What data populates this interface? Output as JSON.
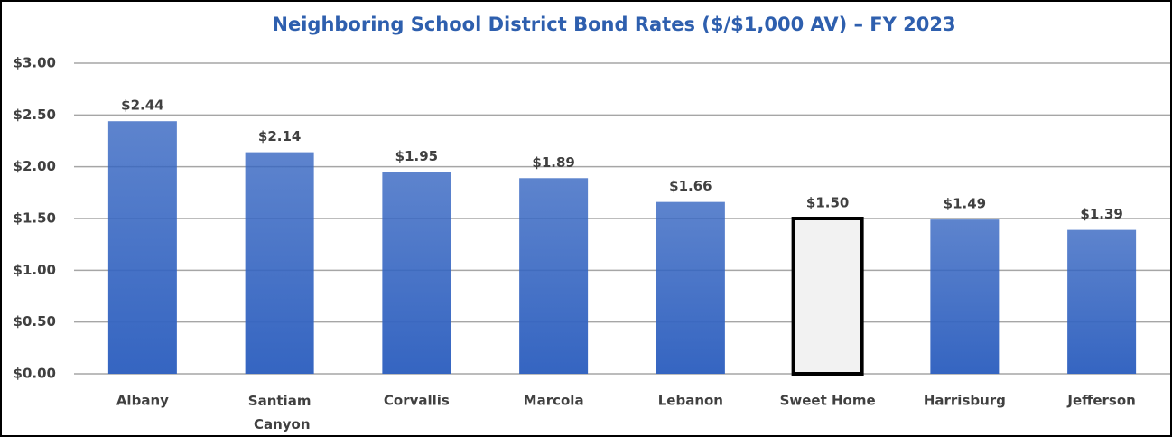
{
  "chart_data": {
    "type": "bar",
    "title": "Neighboring School District Bond Rates ($/$1,000 AV) – FY 2023",
    "categories": [
      "Albany",
      "Santiam Canyon",
      "Corvallis",
      "Marcola",
      "Lebanon",
      "Sweet Home",
      "Harrisburg",
      "Jefferson"
    ],
    "values": [
      2.44,
      2.14,
      1.95,
      1.89,
      1.66,
      1.5,
      1.49,
      1.39
    ],
    "value_labels": [
      "$2.44",
      "$2.14",
      "$1.95",
      "$1.89",
      "$1.66",
      "$1.50",
      "$1.49",
      "$1.39"
    ],
    "colors": [
      "#3565c1",
      "#3565c1",
      "#3565c1",
      "#3565c1",
      "#3565c1",
      "#f2f2f2",
      "#3565c1",
      "#3565c1"
    ],
    "edge_colors": [
      null,
      null,
      null,
      null,
      null,
      "#000000",
      null,
      null
    ],
    "ylim": [
      0,
      3
    ],
    "yticks": [
      {
        "value": 0,
        "label": "$0.00"
      },
      {
        "value": 0.5,
        "label": "$0.50"
      },
      {
        "value": 1,
        "label": "$1.00"
      },
      {
        "value": 1.5,
        "label": "$1.50"
      },
      {
        "value": 2,
        "label": "$2.00"
      },
      {
        "value": 2.5,
        "label": "$2.50"
      },
      {
        "value": 3,
        "label": "$3.00"
      }
    ],
    "grid": true
  }
}
